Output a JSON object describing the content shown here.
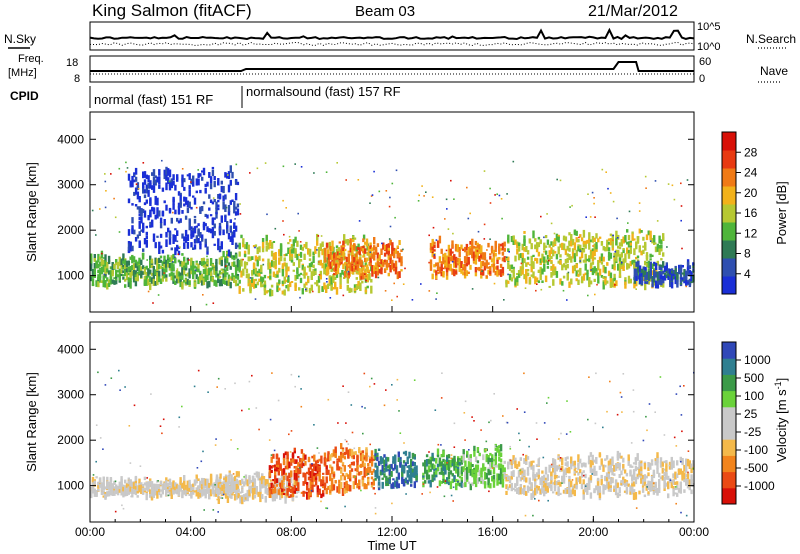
{
  "header": {
    "station": "King Salmon (fitACF)",
    "beam": "Beam 03",
    "date": "21/Mar/2012"
  },
  "sky_panel": {
    "left_label": "N.Sky",
    "right_label": "N.Search",
    "axis_top": "10^5",
    "axis_bottom": "10^0"
  },
  "freq_panel": {
    "left_label_line1": "Freq.",
    "left_label_line2": "[MHz]",
    "right_label": "Nave",
    "left_ticks": [
      "18",
      "8"
    ],
    "right_ticks": [
      "60",
      "0"
    ]
  },
  "cpid": {
    "label": "CPID",
    "segments": [
      {
        "text": "normal (fast) 151 RF",
        "start_hour": 0
      },
      {
        "text": "normalsound (fast) 157 RF",
        "start_hour": 6
      }
    ]
  },
  "colors": {
    "power": [
      "#1a2fd6",
      "#2f4fb0",
      "#2f7a55",
      "#4fb53a",
      "#b6c832",
      "#f2b21b",
      "#f07a16",
      "#e83a12",
      "#d81008"
    ],
    "velocity": [
      "#d81008",
      "#ea4a14",
      "#f2841c",
      "#f4b94a",
      "#c9c9c9",
      "#c9c9c9",
      "#6ad23a",
      "#3b9a48",
      "#2f7f90",
      "#3048b8"
    ]
  },
  "chart_data": [
    {
      "type": "heatmap",
      "quantity": "power",
      "ylabel": "Slant Range [km]",
      "xlabel": "",
      "ylim": [
        200,
        4600
      ],
      "yticks": [
        "1000",
        "2000",
        "3000",
        "4000"
      ],
      "colorbar": {
        "label": "Power [dB]",
        "ticks": [
          "4",
          "8",
          "12",
          "16",
          "20",
          "24",
          "28"
        ],
        "range": [
          0,
          32
        ]
      },
      "echo_regions": [
        {
          "start": 0.0,
          "end": 5.9,
          "range_min": 800,
          "range_max": 1400,
          "level": 3
        },
        {
          "start": 1.5,
          "end": 5.9,
          "range_min": 1500,
          "range_max": 3300,
          "level": 0
        },
        {
          "start": 5.9,
          "end": 11.2,
          "range_min": 650,
          "range_max": 1800,
          "level": 4
        },
        {
          "start": 9.3,
          "end": 12.4,
          "range_min": 1000,
          "range_max": 1700,
          "level": 6
        },
        {
          "start": 13.5,
          "end": 16.5,
          "range_min": 1000,
          "range_max": 1700,
          "level": 6
        },
        {
          "start": 16.5,
          "end": 22.8,
          "range_min": 800,
          "range_max": 1900,
          "level": 4
        },
        {
          "start": 21.6,
          "end": 24.0,
          "range_min": 800,
          "range_max": 1200,
          "level": 1
        }
      ]
    },
    {
      "type": "heatmap",
      "quantity": "velocity",
      "ylabel": "Slant Range [km]",
      "xlabel": "Time UT",
      "ylim": [
        200,
        4600
      ],
      "yticks": [
        "1000",
        "2000",
        "3000",
        "4000"
      ],
      "xticks": [
        "00:00",
        "04:00",
        "08:00",
        "12:00",
        "16:00",
        "20:00",
        "00:00"
      ],
      "xlim_hours": [
        0,
        24
      ],
      "colorbar": {
        "label": "Velocity [m s",
        "label_exponent": "-1",
        "label_close": "]",
        "ticks": [
          "1000",
          "500",
          "100",
          "25",
          "-25",
          "-100",
          "-500",
          "-1000"
        ]
      },
      "echo_regions": [
        {
          "start": 0.0,
          "end": 5.9,
          "range_min": 800,
          "range_max": 1100,
          "level": 4
        },
        {
          "start": 5.0,
          "end": 8.3,
          "range_min": 700,
          "range_max": 1200,
          "level": 4
        },
        {
          "start": 7.1,
          "end": 9.5,
          "range_min": 800,
          "range_max": 1700,
          "level": 1
        },
        {
          "start": 9.5,
          "end": 11.3,
          "range_min": 900,
          "range_max": 1800,
          "level": 2
        },
        {
          "start": 11.3,
          "end": 13.0,
          "range_min": 1000,
          "range_max": 1700,
          "level": 8
        },
        {
          "start": 13.2,
          "end": 14.8,
          "range_min": 1000,
          "range_max": 1700,
          "level": 7
        },
        {
          "start": 14.8,
          "end": 16.5,
          "range_min": 1000,
          "range_max": 1800,
          "level": 6
        },
        {
          "start": 16.5,
          "end": 24.0,
          "range_min": 800,
          "range_max": 1600,
          "level": 4
        }
      ]
    }
  ]
}
